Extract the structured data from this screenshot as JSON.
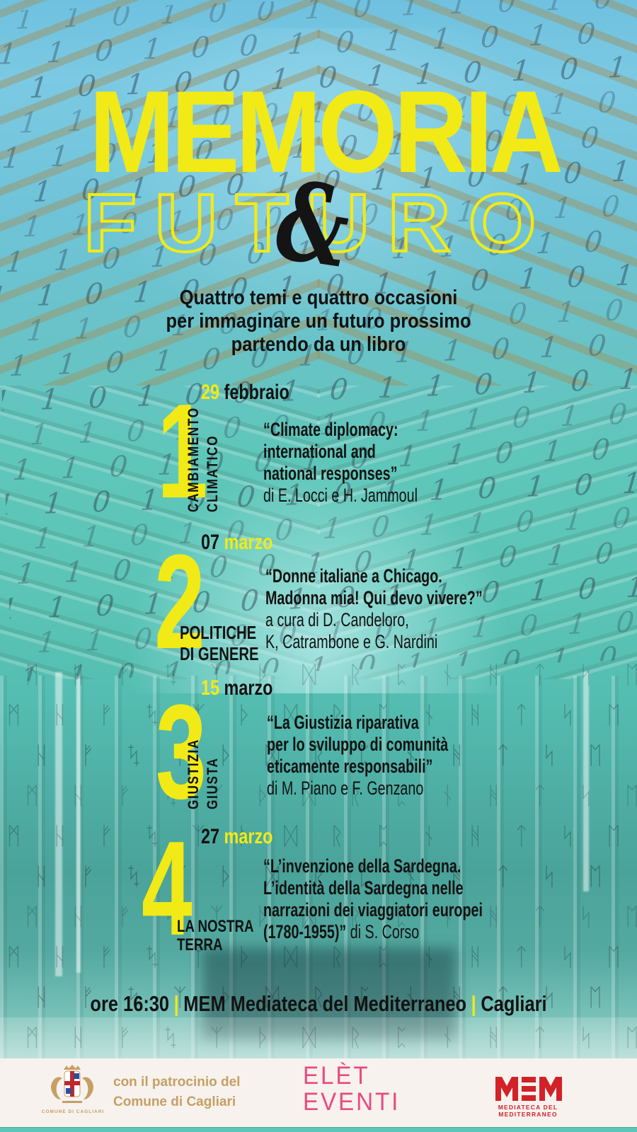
{
  "poster": {
    "title_line1": "MEMORIA",
    "ampersand": "&",
    "title_line2": "FUTURO",
    "subtitle_lines": [
      "Quattro temi e quattro occasioni",
      "per immaginare un futuro prossimo",
      "partendo da un libro"
    ],
    "events": [
      {
        "number": "1",
        "date_day": "29",
        "date_month": "febbraio",
        "theme_words": [
          "CAMBIAMENTO",
          "CLIMATICO"
        ],
        "title_lines": [
          "“Climate diplomacy:",
          "international and",
          "national responses”"
        ],
        "author_lines": [
          "di E. Locci e H. Jammoul"
        ]
      },
      {
        "number": "2",
        "date_day": "07",
        "date_month": "marzo",
        "theme_words": [
          "POLITICHE",
          "DI GENERE"
        ],
        "title_lines": [
          "“Donne italiane a Chicago.",
          "Madonna mia! Qui devo vivere?”"
        ],
        "author_lines": [
          "a cura di D. Candeloro,",
          "K, Catrambone e G. Nardini"
        ]
      },
      {
        "number": "3",
        "date_day": "15",
        "date_month": "marzo",
        "theme_words": [
          "GIUSTIZIA",
          "GIUSTA"
        ],
        "title_lines": [
          "“La Giustizia riparativa",
          "per lo sviluppo di comunità",
          "eticamente responsabili”"
        ],
        "author_lines": [
          "di M. Piano e F. Genzano"
        ]
      },
      {
        "number": "4",
        "date_day": "27",
        "date_month": "marzo",
        "theme_words": [
          "LA NOSTRA",
          "TERRA"
        ],
        "title_lines": [
          "“L’invenzione della Sardegna.",
          "L’identità della Sardegna nelle",
          "narrazioni dei viaggiatori europei"
        ],
        "title_tail": "(1780-1955)”",
        "author_inline": "di S. Corso"
      }
    ],
    "footer": {
      "time": "ore 16:30",
      "separator": "|",
      "venue": "MEM Mediateca del Mediterraneo",
      "city": "Cagliari"
    },
    "sponsors": {
      "patronage_line1": "con il patrocinio del",
      "patronage_line2": "Comune di Cagliari",
      "crest_caption": "COMUNE DI CAGLIARI",
      "elet_line1": "ELÈT",
      "elet_line2": "EVENTI",
      "mem_caption": "MEDIATECA DEL MEDITERRANEO"
    },
    "colors": {
      "accent_yellow": "#f2ea16",
      "text_black": "#121212",
      "sky_blue": "#6fc1df",
      "teal": "#5cc5b7",
      "band_bg": "#f7f2ee",
      "gold": "#c59f63",
      "pink": "#e84b80",
      "red": "#d32128"
    },
    "background": {
      "binary_row": "0 1 1 0 1 0 0 1 0 1 1 0 1 0 1 0 0 1 1 0 1 0 1 1 0 0 1 0",
      "rune_row": "ᛒ ᛗ ᚺ ᚠ ᛪ ᛉ ᚦ ᛞ ᚱ ᛈ ᚾ ᚻ ᛏ ᛋ ᛖ ᚲ ᛟ ᛝ ᚹ ᚷ ᛒ ᛗ ᚠ ᛪ"
    }
  }
}
